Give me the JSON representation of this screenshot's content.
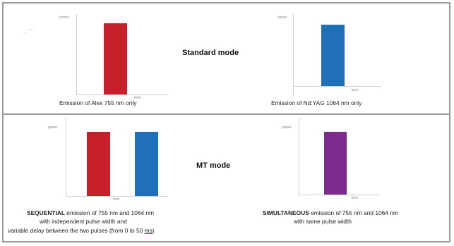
{
  "colors": {
    "alex": "#c8202a",
    "ndyag": "#1f70b8",
    "combined": "#7a2b8c",
    "border": "#9a9a9a"
  },
  "standard_mode": {
    "title": "Standard mode",
    "left_panel": {
      "y_label": "power",
      "x_label": "time",
      "bars": [
        {
          "color": "alex"
        }
      ],
      "caption": "Emission of Alex 755 nm only"
    },
    "right_panel": {
      "y_label": "power",
      "x_label": "time",
      "bars": [
        {
          "color": "ndyag"
        }
      ],
      "caption": "Emission of Nd:YAG 1064 nm only"
    }
  },
  "mt_mode": {
    "title": "MT mode",
    "left_panel": {
      "y_label": "power",
      "x_label": "time",
      "bars": [
        {
          "color": "alex"
        },
        {
          "color": "ndyag"
        }
      ],
      "caption_line1_em": "SEQUENTIAL",
      "caption_line1_rest": " emission of 755 nm and 1064 nm",
      "caption_line2": "with independent pulse width and",
      "caption_line3_pre": "variable delay between the two pulses (from 0 to 50 ",
      "caption_line3_unit": "ms",
      "caption_line3_post": ")"
    },
    "right_panel": {
      "y_label": "power",
      "x_label": "time",
      "bars": [
        {
          "color": "combined"
        }
      ],
      "caption_line1_em": "SIMULTANEOUS",
      "caption_line1_rest": " emission of 755 nm and 1064 nm",
      "caption_line2": "with same pulse width"
    }
  }
}
